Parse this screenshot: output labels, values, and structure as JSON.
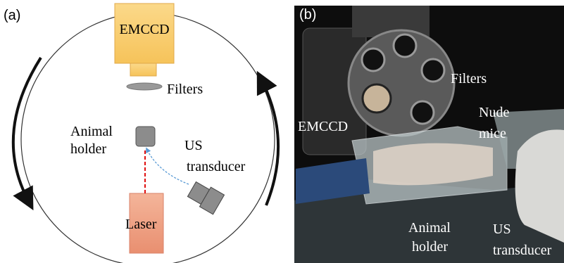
{
  "panel_a": {
    "label": "(a)",
    "emccd": "EMCCD",
    "filters": "Filters",
    "animal_holder": [
      "Animal",
      "holder"
    ],
    "us_transducer": [
      "US",
      "transducer"
    ],
    "laser": "Laser"
  },
  "panel_b": {
    "label": "(b)",
    "filters": "Filters",
    "emccd": "EMCCD",
    "nude_mice": [
      "Nude",
      "mice"
    ],
    "animal_holder": [
      "Animal",
      "holder"
    ],
    "us_transducer": [
      "US",
      "transducer"
    ]
  }
}
